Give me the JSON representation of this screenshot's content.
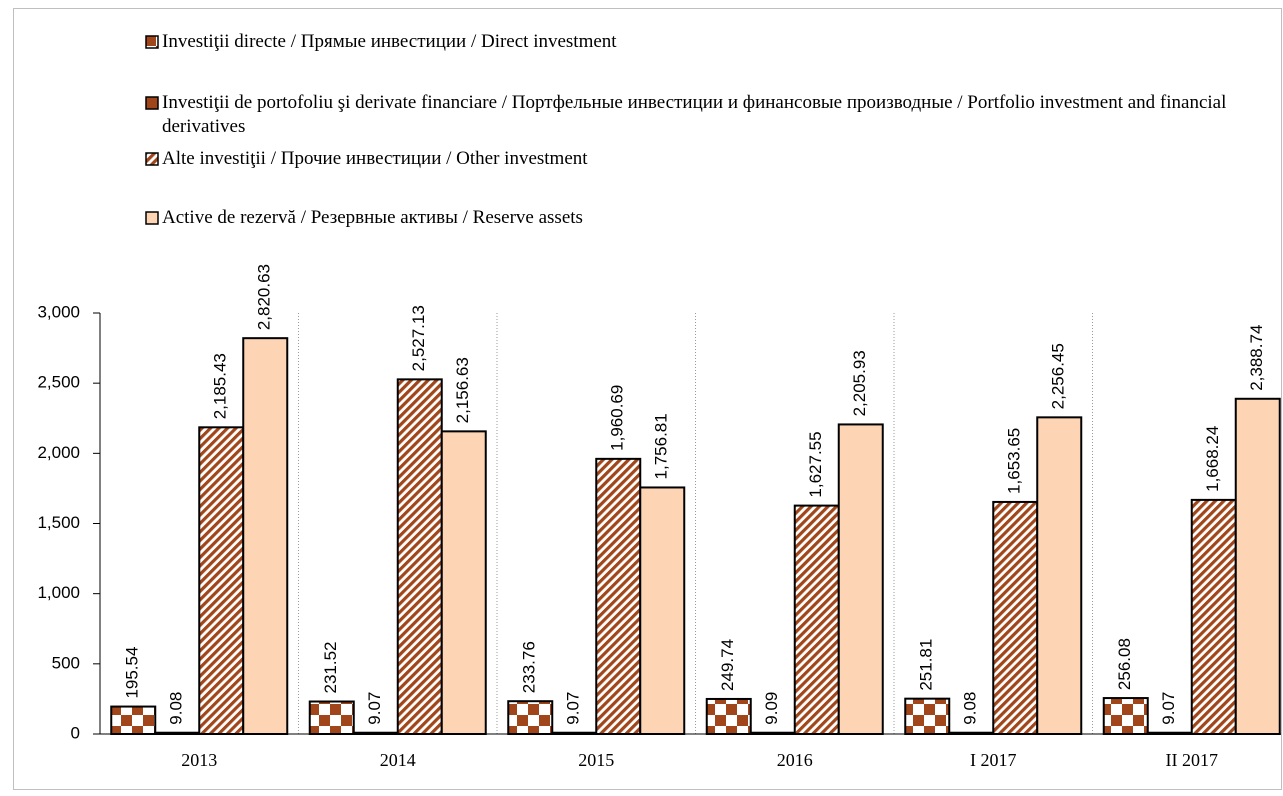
{
  "chart_data": {
    "type": "bar",
    "categories": [
      "2013",
      "2014",
      "2015",
      "2016",
      "I 2017",
      "II 2017"
    ],
    "series": [
      {
        "name": "Investiţii directe /  Прямые инвестиции / Direct investment",
        "color": "#a0461a",
        "pattern": "checker",
        "values": [
          195.54,
          231.52,
          233.76,
          249.74,
          251.81,
          256.08
        ],
        "value_labels": [
          "195.54",
          "231.52",
          "233.76",
          "249.74",
          "251.81",
          "256.08"
        ]
      },
      {
        "name": "Investiţii de portofoliu şi derivate financiare / Портфельные инвестиции и финансовые производные / Portfolio investment and financial derivatives",
        "color": "#a0461a",
        "pattern": "solid",
        "values": [
          9.08,
          9.07,
          9.07,
          9.09,
          9.08,
          9.07
        ],
        "value_labels": [
          "9.08",
          "9.07",
          "9.07",
          "9.09",
          "9.08",
          "9.07"
        ]
      },
      {
        "name": "Alte investiţii / Прочие инвестиции / Other investment",
        "color": "#a0461a",
        "pattern": "diagonal",
        "values": [
          2185.43,
          2527.13,
          1960.69,
          1627.55,
          1653.65,
          1668.24
        ],
        "value_labels": [
          "2,185.43",
          "2,527.13",
          "1,960.69",
          "1,627.55",
          "1,653.65",
          "1,668.24"
        ]
      },
      {
        "name": "Active de rezervă / Резервные активы / Reserve assets",
        "color": "#fdd5b4",
        "pattern": "solid",
        "values": [
          2820.63,
          2156.63,
          1756.81,
          2205.93,
          2256.45,
          2388.74
        ],
        "value_labels": [
          "2,820.63",
          "2,156.63",
          "1,756.81",
          "2,205.93",
          "2,256.45",
          "2,388.74"
        ]
      }
    ],
    "ylim": [
      0,
      3000
    ],
    "yticks": [
      0,
      500,
      {
        "value": 1000,
        "label": "1,000"
      },
      {
        "value": 1500,
        "label": "1,500"
      },
      {
        "value": 2000,
        "label": "2,000"
      },
      {
        "value": 2500,
        "label": "2,500"
      },
      {
        "value": 3000,
        "label": "3,000"
      }
    ],
    "legend": "top"
  }
}
